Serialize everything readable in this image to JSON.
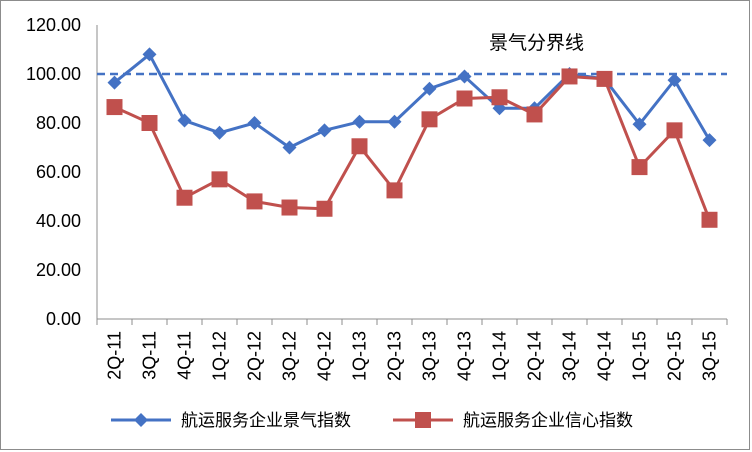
{
  "chart_data": {
    "type": "line",
    "title": "",
    "xlabel": "",
    "ylabel": "",
    "categories": [
      "2Q-11",
      "3Q-11",
      "4Q-11",
      "1Q-12",
      "2Q-12",
      "3Q-12",
      "4Q-12",
      "1Q-13",
      "2Q-13",
      "3Q-13",
      "4Q-13",
      "1Q-14",
      "2Q-14",
      "3Q-14",
      "4Q-14",
      "1Q-15",
      "2Q-15",
      "3Q-15"
    ],
    "y_ticks": [
      "0.00",
      "20.00",
      "40.00",
      "60.00",
      "80.00",
      "100.00",
      "120.00"
    ],
    "ylim": [
      0,
      120
    ],
    "grid": false,
    "legend_position": "bottom",
    "series": [
      {
        "name": "航运服务企业景气指数",
        "color": "#4472C4",
        "marker": "diamond",
        "values": [
          96.5,
          108,
          81,
          76,
          80,
          70,
          77,
          80.5,
          80.5,
          94,
          99,
          86,
          86,
          100,
          98,
          79.5,
          97.5,
          73
        ]
      },
      {
        "name": "航运服务企业信心指数",
        "color": "#C0504D",
        "marker": "square",
        "values": [
          86.5,
          80,
          49.5,
          57,
          48,
          45.5,
          45,
          70.5,
          52.5,
          81.5,
          90,
          90.5,
          83.5,
          99,
          98,
          62,
          77,
          40.5
        ]
      }
    ],
    "reference_line": {
      "value": 100,
      "label": "景气分界线",
      "color": "#4472C4",
      "style": "dashed"
    }
  }
}
